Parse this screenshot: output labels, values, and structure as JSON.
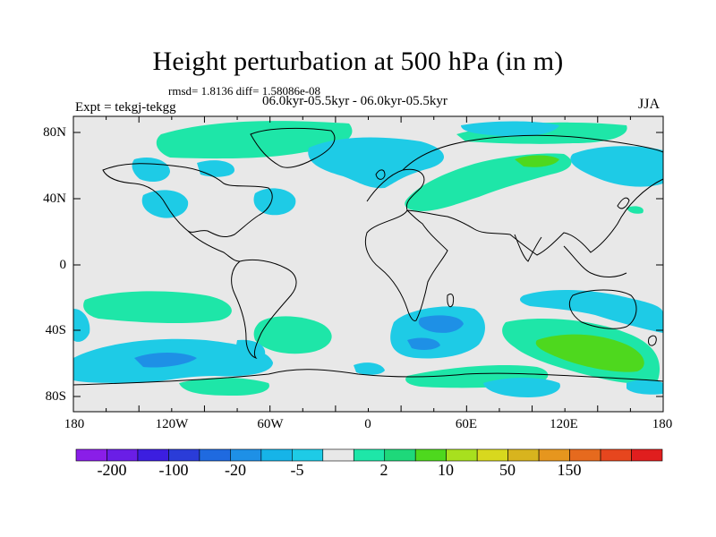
{
  "title": "Height perturbation at 500 hPa (in m)",
  "stats_line": "rmsd= 1.8136 diff= 1.58086e-08",
  "period_line": "06.0kyr-05.5kyr - 06.0kyr-05.5kyr",
  "experiment": "Expt = tekgj-tekgg",
  "season": "JJA",
  "lat_labels": [
    "80N",
    "40N",
    "0",
    "40S",
    "80S"
  ],
  "lon_labels": [
    "180",
    "120W",
    "60W",
    "0",
    "60E",
    "120E",
    "180"
  ],
  "colorbar": {
    "labels": [
      "-200",
      "-100",
      "-20",
      "-5",
      "2",
      "10",
      "50",
      "150"
    ],
    "colors": [
      "#8a1ee8",
      "#6a1ee6",
      "#3c1ee0",
      "#2a3cd8",
      "#1f6ae0",
      "#1e90e6",
      "#16b4e8",
      "#1ecbe6",
      "#e8e8e8",
      "#1ee6a8",
      "#1ed87a",
      "#4ed81e",
      "#a8e01e",
      "#d8d81e",
      "#d8b41e",
      "#e6961e",
      "#e66a1e",
      "#e6461e",
      "#e01e1e"
    ]
  },
  "colors": {
    "background": "#e8e8e8",
    "neg_light": "#1ecbe6",
    "neg_mid": "#16b4e8",
    "neg_strong": "#1e90e6",
    "pos_light": "#1ee6a8",
    "pos_mid": "#4ed81e"
  }
}
